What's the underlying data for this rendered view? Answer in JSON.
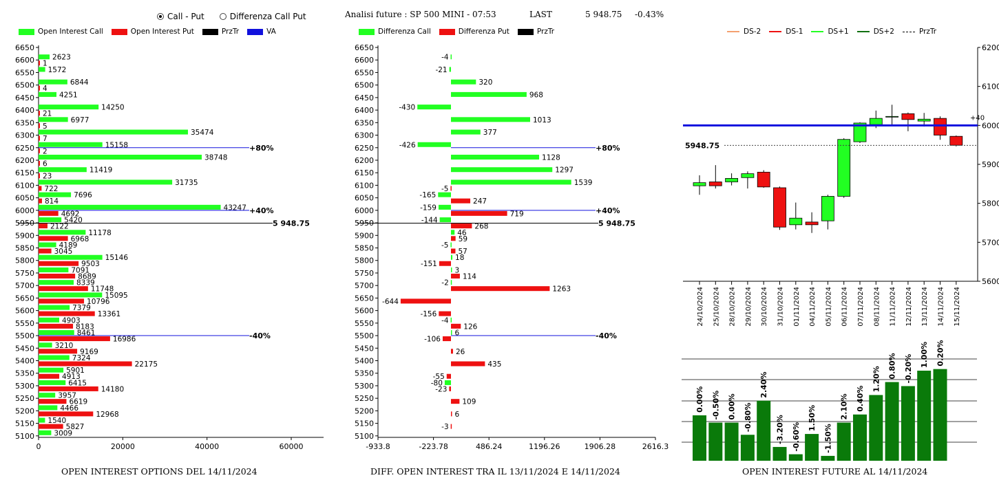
{
  "header": {
    "mode_options": [
      "Call - Put",
      "Differenza Call Put"
    ],
    "selected_mode": 0,
    "title": "Analisi future : SP 500 MINI - 07:53",
    "last_label": "LAST",
    "last_value": "5 948.75",
    "last_change": "-0.43%"
  },
  "legend_left": [
    {
      "label": "Open Interest Call",
      "color": "#22ff22",
      "kind": "box"
    },
    {
      "label": "Open Interest Put",
      "color": "#ee1111",
      "kind": "box"
    },
    {
      "label": "PrzTr",
      "color": "#000000",
      "kind": "box"
    },
    {
      "label": "VA",
      "color": "#1111dd",
      "kind": "box"
    }
  ],
  "legend_mid": [
    {
      "label": "Differenza Call",
      "color": "#22ff22",
      "kind": "box"
    },
    {
      "label": "Differenza Put",
      "color": "#ee1111",
      "kind": "box"
    },
    {
      "label": "PrzTr",
      "color": "#000000",
      "kind": "box"
    }
  ],
  "legend_right": [
    {
      "label": "DS-2",
      "color": "#f4a070",
      "kind": "line"
    },
    {
      "label": "DS-1",
      "color": "#ee1111",
      "kind": "line"
    },
    {
      "label": "DS+1",
      "color": "#22ff22",
      "kind": "line"
    },
    {
      "label": "DS+2",
      "color": "#107010",
      "kind": "line"
    },
    {
      "label": "PrzTr",
      "color": "#000000",
      "kind": "dash"
    }
  ],
  "colors": {
    "call": "#22ff22",
    "put": "#ee1111",
    "va": "#1111dd",
    "bar_dark": "#0a7a0a",
    "candle_up": "#22ff22",
    "candle_down": "#ee1111"
  },
  "footers": {
    "left": "OPEN INTEREST OPTIONS DEL 14/11/2024",
    "mid": "DIFF. OPEN INTEREST TRA IL 13/11/2024 E 14/11/2024",
    "right": "OPEN INTEREST FUTURE AL 14/11/2024"
  },
  "chart_data": [
    {
      "type": "bar",
      "orientation": "horizontal",
      "strikes": [
        6650,
        6600,
        6550,
        6500,
        6450,
        6400,
        6350,
        6300,
        6250,
        6200,
        6150,
        6100,
        6050,
        6000,
        5950,
        5900,
        5850,
        5800,
        5750,
        5700,
        5650,
        5600,
        5550,
        5500,
        5450,
        5400,
        5350,
        5300,
        5250,
        5200,
        5150,
        5100
      ],
      "series": [
        {
          "name": "Open Interest Call",
          "values": [
            null,
            2623,
            1572,
            6844,
            4251,
            14250,
            6977,
            35474,
            15158,
            38748,
            11419,
            31735,
            7696,
            43247,
            5420,
            11178,
            4189,
            15146,
            7091,
            8339,
            15095,
            7379,
            4903,
            8461,
            3210,
            7324,
            5901,
            6415,
            3957,
            4466,
            1540,
            3009
          ]
        },
        {
          "name": "Open Interest Put",
          "values": [
            null,
            1,
            null,
            4,
            null,
            21,
            5,
            7,
            2,
            6,
            23,
            722,
            814,
            4692,
            2122,
            6968,
            3045,
            9503,
            8689,
            11748,
            10796,
            13361,
            8183,
            16986,
            9169,
            22175,
            4913,
            14180,
            6619,
            12968,
            5827,
            null
          ]
        }
      ],
      "xlim": [
        0,
        70000
      ],
      "xticks": [
        "0",
        "20000",
        "40000",
        "60000"
      ],
      "annotations": [
        {
          "strike": 6250,
          "label": "+80%"
        },
        {
          "strike": 6000,
          "label": "+40%"
        },
        {
          "strike": 5500,
          "label": "-40%"
        }
      ],
      "price_line": {
        "value": 5948.75,
        "label": "5 948.75"
      }
    },
    {
      "type": "bar",
      "orientation": "horizontal",
      "strikes": [
        6650,
        6600,
        6550,
        6500,
        6450,
        6400,
        6350,
        6300,
        6250,
        6200,
        6150,
        6100,
        6050,
        6000,
        5950,
        5900,
        5850,
        5800,
        5750,
        5700,
        5650,
        5600,
        5550,
        5500,
        5450,
        5400,
        5350,
        5300,
        5250,
        5200,
        5150,
        5100
      ],
      "series": [
        {
          "name": "Differenza Call",
          "values": [
            null,
            -4,
            -21,
            320,
            968,
            -430,
            1013,
            377,
            -426,
            1128,
            1297,
            1539,
            -165,
            -159,
            -144,
            46,
            -5,
            18,
            3,
            -2,
            null,
            null,
            -4,
            6,
            null,
            null,
            null,
            -80,
            null,
            null,
            null,
            null
          ]
        },
        {
          "name": "Differenza Put",
          "values": [
            null,
            null,
            null,
            null,
            null,
            null,
            null,
            null,
            null,
            null,
            null,
            -5,
            247,
            719,
            268,
            59,
            57,
            -151,
            114,
            1263,
            -644,
            -156,
            126,
            -106,
            26,
            435,
            -55,
            -23,
            109,
            6,
            -3,
            null
          ]
        }
      ],
      "xlim": [
        -933.8,
        2616.3
      ],
      "xticks": [
        "-933.8",
        "-223.78",
        "486.24",
        "1196.26",
        "1906.28",
        "2616.3"
      ],
      "annotations": [
        {
          "strike": 6250,
          "label": "+80%"
        },
        {
          "strike": 6000,
          "label": "+40%"
        },
        {
          "strike": 5500,
          "label": "-40%"
        }
      ],
      "price_line": {
        "value": 5948.75,
        "label": "5 948.75"
      }
    },
    {
      "type": "candlestick",
      "dates": [
        "24/10/2024",
        "25/10/2024",
        "28/10/2024",
        "29/10/2024",
        "30/10/2024",
        "31/10/2024",
        "01/11/2024",
        "04/11/2024",
        "05/11/2024",
        "06/11/2024",
        "07/11/2024",
        "08/11/2024",
        "11/11/2024",
        "12/11/2024",
        "13/11/2024",
        "14/11/2024",
        "15/11/2024"
      ],
      "ohlc": [
        [
          5845,
          5872,
          5822,
          5853
        ],
        [
          5855,
          5898,
          5838,
          5845
        ],
        [
          5855,
          5877,
          5846,
          5864
        ],
        [
          5866,
          5882,
          5838,
          5876
        ],
        [
          5880,
          5885,
          5840,
          5842
        ],
        [
          5840,
          5843,
          5732,
          5739
        ],
        [
          5745,
          5802,
          5733,
          5762
        ],
        [
          5752,
          5777,
          5724,
          5745
        ],
        [
          5755,
          5822,
          5733,
          5818
        ],
        [
          5818,
          5967,
          5814,
          5964
        ],
        [
          5958,
          6008,
          5955,
          6006
        ],
        [
          6002,
          6038,
          5993,
          6018
        ],
        [
          6023,
          6053,
          6002,
          6023
        ],
        [
          6030,
          6033,
          5985,
          6015
        ],
        [
          6011,
          6032,
          5997,
          6016
        ],
        [
          6018,
          6023,
          5963,
          5975
        ],
        [
          5972,
          5974,
          5946,
          5949
        ]
      ],
      "ylim": [
        5600,
        6200
      ],
      "yticks": [
        "5600",
        "5700",
        "5800",
        "5900",
        "6000",
        "6100",
        "6200"
      ],
      "level_line": {
        "value": 6000,
        "label": "+40"
      },
      "price_line": {
        "value": 5948.75,
        "label": "5948.75"
      }
    },
    {
      "type": "bar",
      "categories": [
        "24/10/2024",
        "25/10/2024",
        "28/10/2024",
        "29/10/2024",
        "30/10/2024",
        "31/10/2024",
        "01/11/2024",
        "04/11/2024",
        "05/11/2024",
        "06/11/2024",
        "07/11/2024",
        "08/11/2024",
        "11/11/2024",
        "12/11/2024",
        "13/11/2024",
        "14/11/2024",
        "15/11/2024"
      ],
      "values": [
        0.56,
        0.47,
        0.47,
        0.32,
        0.74,
        0.17,
        0.08,
        0.33,
        0.06,
        0.47,
        0.57,
        0.81,
        0.97,
        0.92,
        1.11,
        1.13,
        null
      ],
      "labels": [
        "0.00%",
        "-0.50%",
        "0.00%",
        "-0.80%",
        "2.40%",
        "-3.20%",
        "-0.60%",
        "1.50%",
        "-1.50%",
        "2.10%",
        "0.40%",
        "1.20%",
        "0.80%",
        "-0.20%",
        "1.00%",
        "0.20%",
        ""
      ],
      "ylim": [
        0,
        1.25
      ],
      "grid": true
    }
  ]
}
